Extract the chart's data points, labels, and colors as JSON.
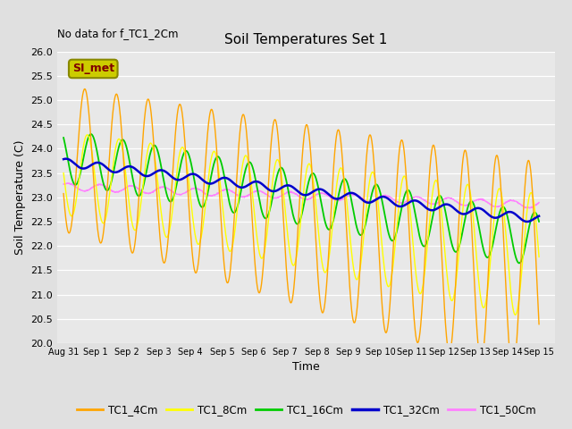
{
  "title": "Soil Temperatures Set 1",
  "no_data_text": "No data for f_TC1_2Cm",
  "xlabel": "Time",
  "ylabel": "Soil Temperature (C)",
  "ylim": [
    20.0,
    26.0
  ],
  "yticks": [
    20.0,
    20.5,
    21.0,
    21.5,
    22.0,
    22.5,
    23.0,
    23.5,
    24.0,
    24.5,
    25.0,
    25.5,
    26.0
  ],
  "xlim_days": [
    -0.2,
    15.5
  ],
  "bg_color": "#e0e0e0",
  "plot_bg_color": "#e8e8e8",
  "legend_labels": [
    "TC1_4Cm",
    "TC1_8Cm",
    "TC1_16Cm",
    "TC1_32Cm",
    "TC1_50Cm"
  ],
  "legend_colors": [
    "#FFA500",
    "#FFFF00",
    "#00CC00",
    "#0000CC",
    "#FF80FF"
  ],
  "si_met_box_facecolor": "#CCCC00",
  "si_met_text_color": "#800000",
  "si_met_edge_color": "#888800",
  "annotation_text": "SI_met",
  "x_tick_labels": [
    "Aug 31",
    "Sep 1",
    "Sep 2",
    "Sep 3",
    "Sep 4",
    "Sep 5",
    "Sep 6",
    "Sep 7",
    "Sep 8",
    "Sep 9",
    "Sep 10",
    "Sep 11",
    "Sep 12",
    "Sep 13",
    "Sep 14",
    "Sep 15"
  ],
  "x_tick_positions": [
    0,
    1,
    2,
    3,
    4,
    5,
    6,
    7,
    8,
    9,
    10,
    11,
    12,
    13,
    14,
    15
  ],
  "title_fontsize": 11,
  "axis_label_fontsize": 9,
  "tick_fontsize": 8
}
